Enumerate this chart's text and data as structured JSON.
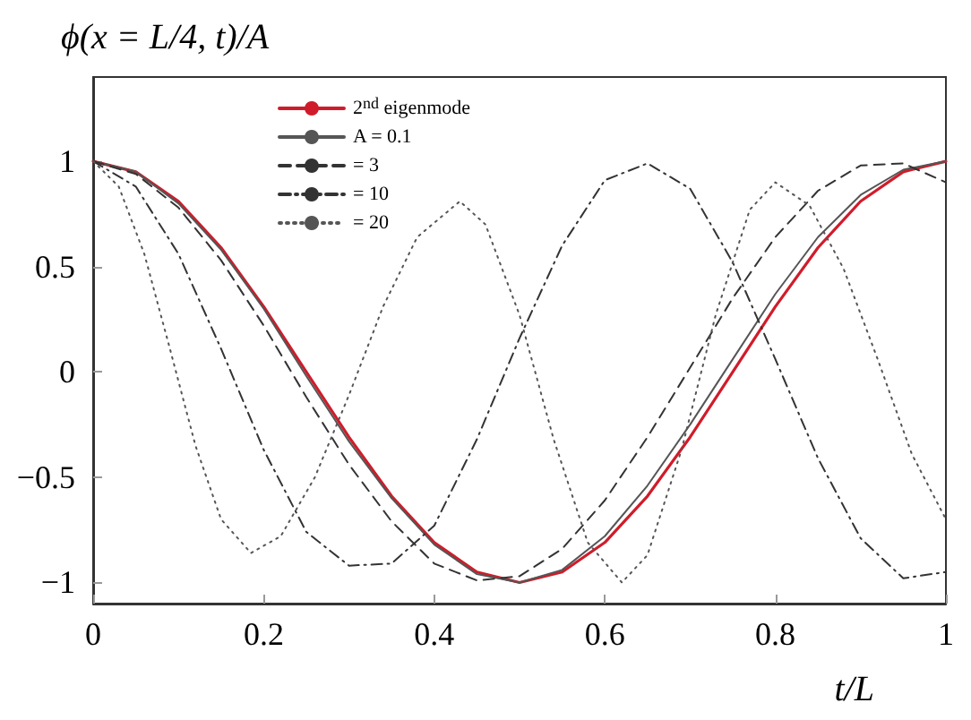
{
  "chart_data": {
    "type": "line",
    "ylabel": "ϕ(x = L/4, t)/A",
    "xlabel": "t/L",
    "xlim": [
      0,
      1
    ],
    "xticks": [
      0,
      0.2,
      0.4,
      0.6,
      0.8,
      1
    ],
    "ylim": [
      -1.1,
      1.4
    ],
    "yticks": [
      -1,
      -0.5,
      0,
      0.5,
      1
    ],
    "grid": false,
    "legend": "top",
    "marker": "none",
    "x": [
      0,
      0.05,
      0.1,
      0.15,
      0.2,
      0.25,
      0.3,
      0.35,
      0.4,
      0.45,
      0.5,
      0.55,
      0.6,
      0.65,
      0.7,
      0.75,
      0.8,
      0.85,
      0.9,
      0.95,
      1
    ],
    "series": [
      {
        "name": "2$^{nd}$ eigenmode",
        "color": "#d01c2a",
        "line_style": "solid",
        "values": [
          1,
          0.95,
          0.81,
          0.59,
          0.31,
          0,
          -0.31,
          -0.59,
          -0.81,
          -0.95,
          -1,
          -0.95,
          -0.81,
          -0.59,
          -0.31,
          0,
          0.31,
          0.59,
          0.81,
          0.95,
          1
        ]
      },
      {
        "name": "A = 0.1",
        "color": "#555555",
        "line_style": "solid",
        "values": [
          1,
          0.95,
          0.8,
          0.58,
          0.3,
          -0.02,
          -0.33,
          -0.6,
          -0.82,
          -0.96,
          -1,
          -0.94,
          -0.78,
          -0.54,
          -0.25,
          0.06,
          0.37,
          0.64,
          0.84,
          0.96,
          1
        ]
      },
      {
        "name": "= 3",
        "color": "#333333",
        "line_style": "dashed",
        "values": [
          1,
          0.94,
          0.78,
          0.53,
          0.22,
          -0.12,
          -0.44,
          -0.71,
          -0.91,
          -0.99,
          -0.97,
          -0.84,
          -0.61,
          -0.31,
          0.02,
          0.35,
          0.64,
          0.86,
          0.98,
          0.99,
          0.9
        ]
      },
      {
        "name": "= 10",
        "color": "#333333",
        "line_style": "dashdot",
        "values": [
          1,
          0.88,
          0.56,
          0.11,
          -0.37,
          -0.76,
          -0.92,
          -0.91,
          -0.73,
          -0.32,
          0.16,
          0.6,
          0.91,
          0.99,
          0.87,
          0.52,
          0.06,
          -0.41,
          -0.79,
          -0.98,
          -0.95
        ]
      },
      {
        "name": "= 20",
        "color": "#555555",
        "line_style": "dotted",
        "x": [
          0,
          0.03,
          0.06,
          0.09,
          0.12,
          0.15,
          0.185,
          0.22,
          0.26,
          0.3,
          0.34,
          0.38,
          0.43,
          0.46,
          0.5,
          0.54,
          0.58,
          0.62,
          0.65,
          0.69,
          0.73,
          0.77,
          0.8,
          0.84,
          0.88,
          0.92,
          0.96,
          1
        ],
        "values": [
          1,
          0.88,
          0.56,
          0.11,
          -0.35,
          -0.7,
          -0.86,
          -0.78,
          -0.5,
          -0.11,
          0.31,
          0.64,
          0.81,
          0.7,
          0.27,
          -0.32,
          -0.81,
          -1,
          -0.87,
          -0.37,
          0.27,
          0.77,
          0.9,
          0.79,
          0.49,
          0.06,
          -0.39,
          -0.7
        ]
      }
    ]
  }
}
